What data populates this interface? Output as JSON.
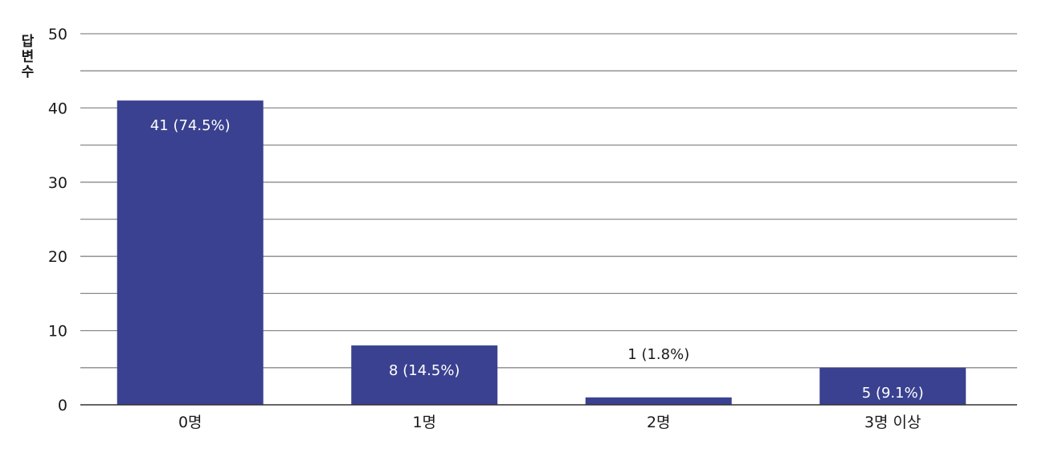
{
  "chart_data": {
    "type": "bar",
    "ylabel": "답변수",
    "categories": [
      "0명",
      "1명",
      "2명",
      "3명 이상"
    ],
    "values": [
      41,
      8,
      1,
      5
    ],
    "data_labels": [
      "41 (74.5%)",
      "8 (14.5%)",
      "1 (1.8%)",
      "5 (9.1%)"
    ],
    "yticks": [
      "0",
      "10",
      "20",
      "30",
      "40",
      "50"
    ],
    "ylim": [
      0,
      50
    ],
    "gridline_step": 5,
    "grid": true,
    "bar_color": "#3a4190",
    "label_color_inside": "#ffffff",
    "label_color_outside": "#1a1a1a"
  }
}
